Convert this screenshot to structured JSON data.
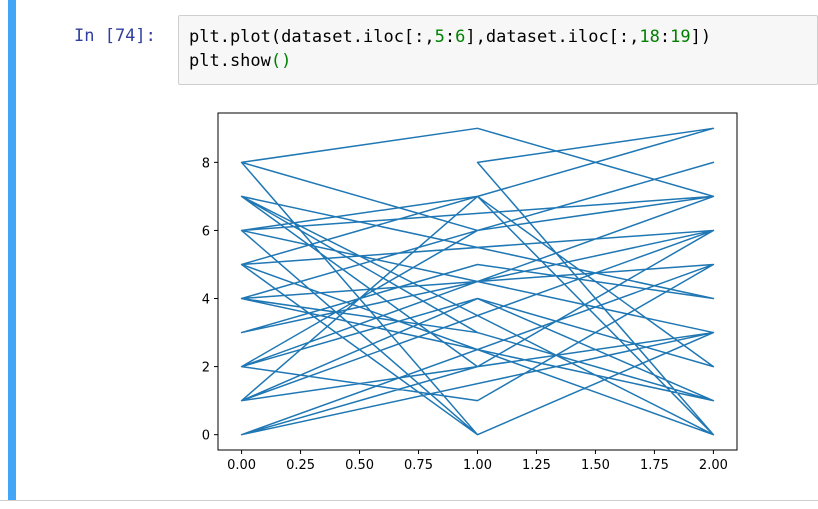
{
  "cell": {
    "prompt": "In [74]:",
    "code": [
      [
        "plt.plot(dataset.iloc[:,",
        "5",
        ":",
        "6",
        "],dataset.iloc[:,",
        "18",
        ":",
        "19",
        "])"
      ],
      [
        "plt.show",
        "()"
      ]
    ]
  },
  "chart_data": {
    "type": "line",
    "color": "#1f77b4",
    "x": [
      0,
      1,
      2,
      0,
      1,
      0,
      2,
      1,
      2,
      0,
      1,
      2,
      0,
      2,
      1,
      0,
      1,
      2,
      0,
      2,
      0,
      1,
      2,
      1,
      0,
      2,
      0,
      1,
      2,
      0,
      1,
      2,
      0,
      2,
      1,
      0,
      2,
      1,
      0,
      1,
      2,
      0,
      1,
      2,
      1,
      0,
      2,
      0,
      1,
      2
    ],
    "values": [
      8,
      9,
      7,
      6,
      0,
      5,
      9,
      8,
      0,
      7,
      3,
      1,
      4,
      8,
      6,
      2,
      1,
      5,
      0,
      3,
      6,
      7,
      2,
      4,
      1,
      6,
      3,
      5,
      4,
      7,
      2,
      6,
      5,
      0,
      7,
      1,
      3,
      0,
      8,
      6,
      7,
      2,
      4,
      1,
      3,
      4,
      5,
      0,
      2,
      6
    ],
    "xlim": [
      -0.1,
      2.1
    ],
    "ylim": [
      -0.45,
      9.45
    ],
    "xticks": [
      {
        "value": 0,
        "label": "0.00"
      },
      {
        "value": 0.25,
        "label": "0.25"
      },
      {
        "value": 0.5,
        "label": "0.50"
      },
      {
        "value": 0.75,
        "label": "0.75"
      },
      {
        "value": 1,
        "label": "1.00"
      },
      {
        "value": 1.25,
        "label": "1.25"
      },
      {
        "value": 1.5,
        "label": "1.50"
      },
      {
        "value": 1.75,
        "label": "1.75"
      },
      {
        "value": 2,
        "label": "2.00"
      }
    ],
    "yticks": [
      0,
      2,
      4,
      6,
      8
    ]
  }
}
